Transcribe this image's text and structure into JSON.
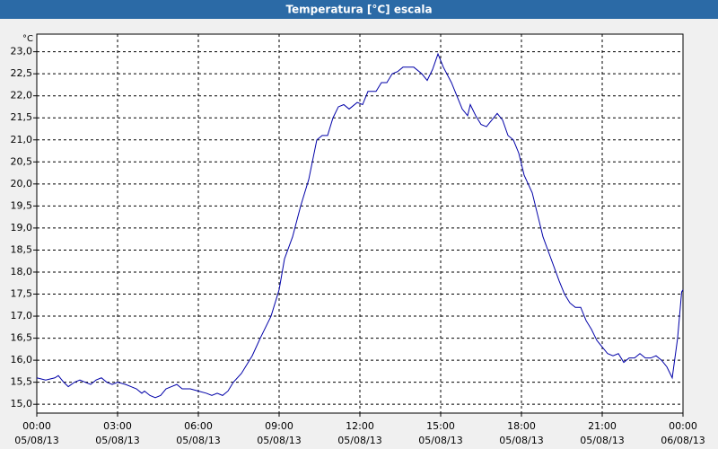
{
  "chart_data": {
    "type": "line",
    "title": "Temperatura [°C] escala",
    "y_unit": "°C",
    "x": [
      0.0,
      0.33,
      0.67,
      0.8,
      1.0,
      1.17,
      1.4,
      1.6,
      1.8,
      2.0,
      2.2,
      2.4,
      2.6,
      2.8,
      3.0,
      3.3,
      3.5,
      3.7,
      3.9,
      4.0,
      4.2,
      4.4,
      4.6,
      4.8,
      5.0,
      5.2,
      5.4,
      5.7,
      6.0,
      6.3,
      6.5,
      6.7,
      6.9,
      7.1,
      7.3,
      7.6,
      8.0,
      8.3,
      8.7,
      9.0,
      9.2,
      9.5,
      9.8,
      10.1,
      10.4,
      10.6,
      10.8,
      11.0,
      11.2,
      11.4,
      11.6,
      11.9,
      12.1,
      12.3,
      12.6,
      12.8,
      13.0,
      13.2,
      13.4,
      13.6,
      14.0,
      14.3,
      14.5,
      14.7,
      14.9,
      15.1,
      15.4,
      15.6,
      15.8,
      16.0,
      16.1,
      16.3,
      16.5,
      16.7,
      16.9,
      17.1,
      17.3,
      17.5,
      17.7,
      17.9,
      18.1,
      18.4,
      18.6,
      18.8,
      19.1,
      19.4,
      19.6,
      19.8,
      20.0,
      20.2,
      20.4,
      20.6,
      20.8,
      21.0,
      21.2,
      21.4,
      21.6,
      21.8,
      22.0,
      22.2,
      22.4,
      22.6,
      22.8,
      23.0,
      23.2,
      23.4,
      23.6,
      23.8,
      23.95,
      24.0
    ],
    "series": [
      {
        "name": "Temperatura",
        "color": "#0000a8",
        "values": [
          15.6,
          15.55,
          15.6,
          15.65,
          15.5,
          15.4,
          15.5,
          15.55,
          15.5,
          15.45,
          15.55,
          15.6,
          15.5,
          15.45,
          15.5,
          15.45,
          15.4,
          15.35,
          15.25,
          15.3,
          15.2,
          15.15,
          15.2,
          15.35,
          15.4,
          15.45,
          15.35,
          15.35,
          15.3,
          15.25,
          15.2,
          15.25,
          15.2,
          15.3,
          15.5,
          15.7,
          16.1,
          16.5,
          17.0,
          17.6,
          18.3,
          18.8,
          19.5,
          20.1,
          21.0,
          21.1,
          21.1,
          21.5,
          21.75,
          21.8,
          21.7,
          21.85,
          21.8,
          22.1,
          22.1,
          22.3,
          22.3,
          22.5,
          22.55,
          22.65,
          22.65,
          22.5,
          22.35,
          22.6,
          22.95,
          22.65,
          22.3,
          22.0,
          21.7,
          21.55,
          21.8,
          21.55,
          21.35,
          21.3,
          21.45,
          21.6,
          21.45,
          21.1,
          21.0,
          20.7,
          20.2,
          19.8,
          19.3,
          18.8,
          18.3,
          17.8,
          17.5,
          17.3,
          17.2,
          17.2,
          16.9,
          16.7,
          16.45,
          16.3,
          16.15,
          16.1,
          16.15,
          15.95,
          16.05,
          16.05,
          16.15,
          16.05,
          16.05,
          16.1,
          16.0,
          15.85,
          15.6,
          16.5,
          17.55,
          17.6
        ]
      }
    ],
    "xlim": [
      0,
      24
    ],
    "ylim": [
      14.8,
      23.4
    ],
    "xticks": [
      {
        "value": 0,
        "label": "00:00"
      },
      {
        "value": 3,
        "label": "03:00"
      },
      {
        "value": 6,
        "label": "06:00"
      },
      {
        "value": 9,
        "label": "09:00"
      },
      {
        "value": 12,
        "label": "12:00"
      },
      {
        "value": 15,
        "label": "15:00"
      },
      {
        "value": 18,
        "label": "18:00"
      },
      {
        "value": 21,
        "label": "21:00"
      },
      {
        "value": 24,
        "label": "00:00"
      }
    ],
    "xtick_dates": [
      "05/08/13",
      "05/08/13",
      "05/08/13",
      "05/08/13",
      "05/08/13",
      "05/08/13",
      "05/08/13",
      "05/08/13",
      "06/08/13"
    ],
    "yticks": [
      {
        "value": 15,
        "label": "15,0"
      },
      {
        "value": 15.5,
        "label": "15,5"
      },
      {
        "value": 16,
        "label": "16,0"
      },
      {
        "value": 16.5,
        "label": "16,5"
      },
      {
        "value": 17,
        "label": "17,0"
      },
      {
        "value": 17.5,
        "label": "17,5"
      },
      {
        "value": 18,
        "label": "18,0"
      },
      {
        "value": 18.5,
        "label": "18,5"
      },
      {
        "value": 19,
        "label": "19,0"
      },
      {
        "value": 19.5,
        "label": "19,5"
      },
      {
        "value": 20,
        "label": "20,0"
      },
      {
        "value": 20.5,
        "label": "20,5"
      },
      {
        "value": 21,
        "label": "21,0"
      },
      {
        "value": 21.5,
        "label": "21,5"
      },
      {
        "value": 22,
        "label": "22,0"
      },
      {
        "value": 22.5,
        "label": "22,5"
      },
      {
        "value": 23,
        "label": "23,0"
      }
    ],
    "grid": true
  }
}
